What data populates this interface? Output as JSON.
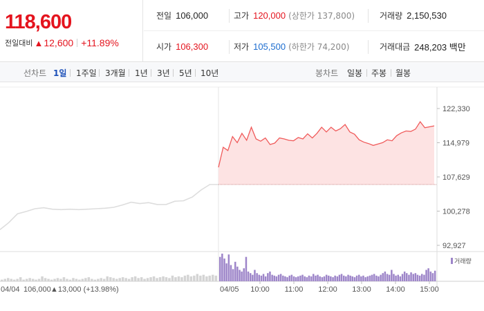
{
  "quote": {
    "price": "118,600",
    "change_label": "전일대비",
    "change_arrow": "▲",
    "change_amount": "12,600",
    "change_percent": "+11.89%"
  },
  "stats": {
    "prev_close": {
      "label": "전일",
      "value": "106,000"
    },
    "high": {
      "label": "고가",
      "value": "120,000",
      "sub": "(상한가 137,800)"
    },
    "volume": {
      "label": "거래량",
      "value": "2,150,530"
    },
    "open": {
      "label": "시가",
      "value": "106,300"
    },
    "low": {
      "label": "저가",
      "value": "105,500",
      "sub": "(하한가 74,200)"
    },
    "trade_value": {
      "label": "거래대금",
      "value": "248,203 백만"
    }
  },
  "line_tabs": {
    "title": "선차트",
    "items": [
      "1일",
      "1주일",
      "3개월",
      "1년",
      "3년",
      "5년",
      "10년"
    ],
    "active": "1일"
  },
  "candle_tabs": {
    "title": "봉차트",
    "items": [
      "일봉",
      "주봉",
      "월봉"
    ]
  },
  "colors": {
    "up": "#e4141e",
    "down": "#1b6ccf",
    "prev_day_line": "#dddddd",
    "today_line": "#f05a5a",
    "today_fill": "#fde3e3",
    "prev_volume": "#d4d4d4",
    "today_volume": "#9d85c9"
  },
  "chart_data": {
    "type": "line",
    "y_ticks": [
      "122,330",
      "114,979",
      "107,629",
      "100,278",
      "92,927"
    ],
    "ylim": [
      92927,
      122330
    ],
    "reference_price": 106000,
    "prev_day": {
      "date": "04/04",
      "close": "106,000",
      "change_arrow": "▲",
      "change": "13,000",
      "change_percent": "(+13.98%)",
      "prices": [
        96300,
        97800,
        99700,
        100200,
        100800,
        101000,
        100700,
        100600,
        100700,
        100600,
        100700,
        100800,
        100900,
        101100,
        101600,
        102200,
        101900,
        102100,
        101700,
        101700,
        102400,
        102500,
        103300,
        104800,
        106000,
        106000
      ]
    },
    "today": {
      "date": "04/05",
      "x_ticks": [
        "10:00",
        "11:00",
        "12:00",
        "13:00",
        "14:00",
        "15:00"
      ],
      "prices": [
        109700,
        114000,
        113300,
        116300,
        115000,
        117000,
        115500,
        118300,
        115800,
        115300,
        116000,
        114600,
        114900,
        116000,
        115800,
        115500,
        115400,
        116100,
        115800,
        116900,
        116000,
        117000,
        118300,
        117300,
        118300,
        117500,
        118000,
        118900,
        117300,
        116800,
        115600,
        115100,
        114800,
        114400,
        114700,
        115000,
        115600,
        115400,
        116500,
        117100,
        117500,
        117400,
        117900,
        119500,
        118200,
        118400,
        118600
      ]
    },
    "volume": {
      "legend": "거래량",
      "prev_day": [
        2,
        3,
        4,
        3,
        2,
        3,
        5,
        2,
        3,
        4,
        3,
        2,
        3,
        6,
        4,
        3,
        2,
        3,
        4,
        3,
        5,
        3,
        2,
        4,
        3,
        2,
        3,
        4,
        5,
        3,
        2,
        3,
        4,
        3,
        6,
        5,
        4,
        3,
        4,
        5,
        4,
        3,
        5,
        6,
        4,
        5,
        3,
        4,
        5,
        6,
        4,
        5,
        6,
        5,
        4,
        7,
        5,
        6,
        5,
        7,
        8,
        6,
        7,
        9,
        7,
        8,
        6,
        7,
        8,
        7
      ],
      "today": [
        30,
        34,
        28,
        22,
        33,
        20,
        15,
        24,
        18,
        14,
        12,
        16,
        30,
        12,
        10,
        8,
        14,
        10,
        8,
        7,
        9,
        6,
        10,
        12,
        8,
        7,
        6,
        8,
        9,
        7,
        6,
        5,
        7,
        8,
        6,
        5,
        6,
        7,
        8,
        6,
        5,
        7,
        6,
        9,
        7,
        8,
        6,
        5,
        6,
        8,
        7,
        6,
        5,
        7,
        6,
        8,
        9,
        7,
        6,
        8,
        7,
        6,
        5,
        7,
        8,
        6,
        7,
        5,
        6,
        7,
        8,
        9,
        7,
        6,
        8,
        10,
        12,
        9,
        8,
        14,
        9,
        7,
        8,
        6,
        9,
        12,
        10,
        8,
        11,
        9,
        10,
        8,
        7,
        9,
        8,
        14,
        16,
        12,
        10,
        13
      ]
    }
  }
}
